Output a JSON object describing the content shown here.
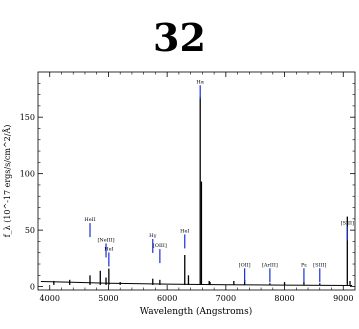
{
  "page": {
    "title": "32"
  },
  "chart_data": {
    "type": "line",
    "xlabel": "Wavelength (Angstroms)",
    "ylabel": "f_λ (10^-17 ergs/s/cm^2/Å)",
    "xlim": [
      3800,
      9200
    ],
    "ylim": [
      -3,
      190
    ],
    "xticks": [
      4000,
      5000,
      6000,
      7000,
      8000,
      9000
    ],
    "yticks": [
      0,
      50,
      100,
      150
    ],
    "grid": false,
    "series": [
      {
        "continuum": [
          [
            3850,
            4.5
          ],
          [
            4300,
            4.0
          ],
          [
            5000,
            3.0
          ],
          [
            6000,
            2.2
          ],
          [
            7000,
            1.7
          ],
          [
            8000,
            1.3
          ],
          [
            9150,
            1.0
          ]
        ],
        "lines": [
          {
            "x": 4070,
            "y": 5
          },
          {
            "x": 4340,
            "y": 6
          },
          {
            "x": 4686,
            "y": 10
          },
          {
            "x": 4861,
            "y": 14
          },
          {
            "x": 4959,
            "y": 8
          },
          {
            "x": 5007,
            "y": 16
          },
          {
            "x": 5200,
            "y": 4
          },
          {
            "x": 5755,
            "y": 7
          },
          {
            "x": 5876,
            "y": 6
          },
          {
            "x": 6300,
            "y": 28
          },
          {
            "x": 6363,
            "y": 10
          },
          {
            "x": 6563,
            "y": 168
          },
          {
            "x": 6584,
            "y": 93
          },
          {
            "x": 6716,
            "y": 5
          },
          {
            "x": 6731,
            "y": 4
          },
          {
            "x": 7136,
            "y": 5
          },
          {
            "x": 7320,
            "y": 6
          },
          {
            "x": 7750,
            "y": 3
          },
          {
            "x": 8000,
            "y": 4
          },
          {
            "x": 8330,
            "y": 4
          },
          {
            "x": 8600,
            "y": 3
          },
          {
            "x": 9069,
            "y": 62
          },
          {
            "x": 9115,
            "y": 5
          }
        ]
      }
    ],
    "line_ids": [
      {
        "x": 4686,
        "label": "HeII",
        "y": 58
      },
      {
        "x": 4959,
        "label": "[NeIII]",
        "y": 40
      },
      {
        "x": 5007,
        "label": "HeI",
        "y": 32
      },
      {
        "x": 5755,
        "label": "Hγ",
        "y": 44
      },
      {
        "x": 5876,
        "label": "[OIII]",
        "y": 35
      },
      {
        "x": 6300,
        "label": "HeI",
        "y": 48
      },
      {
        "x": 6563,
        "label": "Hα",
        "y": 180
      },
      {
        "x": 7320,
        "label": "[OII]",
        "y": 18
      },
      {
        "x": 7750,
        "label": "[ArIII]",
        "y": 18
      },
      {
        "x": 9069,
        "label": "[SIII]",
        "y": 55
      },
      {
        "x": 8330,
        "label": "Pε",
        "y": 18
      },
      {
        "x": 8600,
        "label": "[SIII]",
        "y": 18
      }
    ]
  }
}
